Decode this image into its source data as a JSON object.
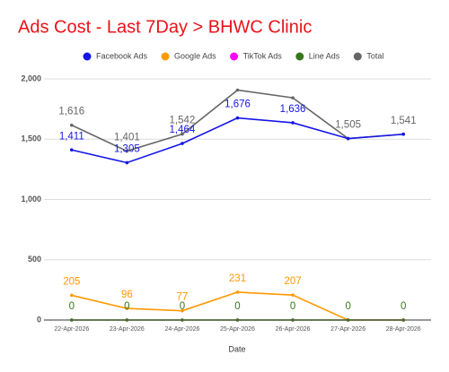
{
  "chart_data": {
    "type": "line",
    "title": "Ads Cost - Last 7Day > BHWC Clinic",
    "x_label": "Date",
    "categories": [
      "22-Apr-2026",
      "23-Apr-2026",
      "24-Apr-2026",
      "25-Apr-2026",
      "26-Apr-2026",
      "27-Apr-2026",
      "28-Apr-2026"
    ],
    "series": [
      {
        "name": "Facebook Ads",
        "color": "#1515e8",
        "values": [
          1411,
          1305,
          1464,
          1676,
          1636,
          1505,
          1541
        ],
        "value_labels": [
          "1,411",
          "1,305",
          "1,464",
          "1,676",
          "1,636",
          null,
          null
        ]
      },
      {
        "name": "Google Ads",
        "color": "#ff9900",
        "values": [
          205,
          96,
          77,
          231,
          207,
          0,
          0
        ],
        "value_labels": [
          "205",
          "96",
          "77",
          "231",
          "207",
          null,
          null
        ]
      },
      {
        "name": "TikTok Ads",
        "color": "#ff00ff",
        "values": [
          0,
          0,
          0,
          0,
          0,
          0,
          0
        ],
        "value_labels": [
          null,
          null,
          null,
          null,
          null,
          null,
          null
        ]
      },
      {
        "name": "Line Ads",
        "color": "#38761d",
        "values": [
          0,
          0,
          0,
          0,
          0,
          0,
          0
        ],
        "value_labels": [
          "0",
          "0",
          "0",
          "0",
          "0",
          "0",
          "0"
        ]
      },
      {
        "name": "Total",
        "color": "#666666",
        "values": [
          1616,
          1401,
          1542,
          1907,
          1843,
          1505,
          1541
        ],
        "value_labels": [
          "1,616",
          "1,401",
          "1,542",
          null,
          null,
          "1,505",
          "1,541"
        ]
      }
    ],
    "ylim": [
      0,
      2000
    ],
    "yticks": [
      0,
      500,
      {
        "value": 1000,
        "label": "1,000"
      },
      {
        "value": 1500,
        "label": "1,500"
      },
      {
        "value": 2000,
        "label": "2,000"
      }
    ],
    "grid": true,
    "legend": "top"
  }
}
